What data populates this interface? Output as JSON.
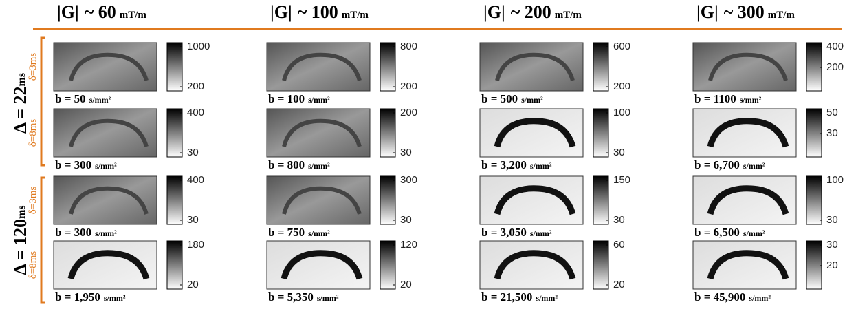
{
  "columns": [
    {
      "g": "|G|",
      "value": "~ 60",
      "unit": "mT/m"
    },
    {
      "g": "|G|",
      "value": "~ 100",
      "unit": "mT/m"
    },
    {
      "g": "|G|",
      "value": "~ 200",
      "unit": "mT/m"
    },
    {
      "g": "|G|",
      "value": "~ 300",
      "unit": "mT/m"
    }
  ],
  "groups": [
    {
      "label": "Δ = 22",
      "unit": "ms",
      "rows": [
        "δ=3ms",
        "δ=8ms"
      ]
    },
    {
      "label": "Δ = 120",
      "unit": "ms",
      "rows": [
        "δ=3ms",
        "δ=8ms"
      ]
    }
  ],
  "cells": [
    [
      {
        "b": "b = 50",
        "unit": "s/mm²",
        "ticks": [
          "1000",
          "200"
        ]
      },
      {
        "b": "b = 100",
        "unit": "s/mm²",
        "ticks": [
          "800",
          "200"
        ]
      },
      {
        "b": "b = 500",
        "unit": "s/mm²",
        "ticks": [
          "600",
          "200"
        ]
      },
      {
        "b": "b = 1100",
        "unit": "s/mm²",
        "ticks": [
          "400",
          "200"
        ]
      }
    ],
    [
      {
        "b": "b = 300",
        "unit": "s/mm²",
        "ticks": [
          "400",
          "30"
        ]
      },
      {
        "b": "b = 800",
        "unit": "s/mm²",
        "ticks": [
          "200",
          "30"
        ]
      },
      {
        "b": "b = 3,200",
        "unit": "s/mm²",
        "ticks": [
          "100",
          "30"
        ]
      },
      {
        "b": "b = 6,700",
        "unit": "s/mm²",
        "ticks": [
          "50",
          "30"
        ]
      }
    ],
    [
      {
        "b": "b = 300",
        "unit": "s/mm²",
        "ticks": [
          "400",
          "30"
        ]
      },
      {
        "b": "b = 750",
        "unit": "s/mm²",
        "ticks": [
          "300",
          "30"
        ]
      },
      {
        "b": "b = 3,050",
        "unit": "s/mm²",
        "ticks": [
          "150",
          "30"
        ]
      },
      {
        "b": "b = 6,500",
        "unit": "s/mm²",
        "ticks": [
          "100",
          "30"
        ]
      }
    ],
    [
      {
        "b": "b = 1,950",
        "unit": "s/mm²",
        "ticks": [
          "180",
          "20"
        ]
      },
      {
        "b": "b = 5,350",
        "unit": "s/mm²",
        "ticks": [
          "120",
          "20"
        ]
      },
      {
        "b": "b = 21,500",
        "unit": "s/mm²",
        "ticks": [
          "60",
          "20"
        ]
      },
      {
        "b": "b = 45,900",
        "unit": "s/mm²",
        "ticks": [
          "30",
          "20"
        ]
      }
    ]
  ]
}
